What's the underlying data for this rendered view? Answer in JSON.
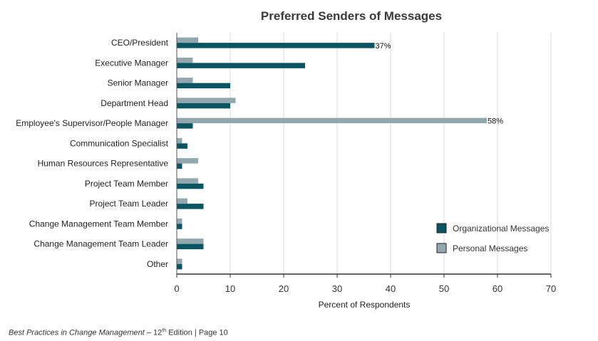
{
  "chart_data": {
    "type": "bar",
    "orientation": "horizontal",
    "title": "Preferred Senders of Messages",
    "xlabel": "Percent of Respondents",
    "ylabel": "",
    "xlim": [
      0,
      70
    ],
    "xticks": [
      0,
      10,
      20,
      30,
      40,
      50,
      60,
      70
    ],
    "grid": true,
    "legend_position": "right",
    "categories": [
      "CEO/President",
      "Executive Manager",
      "Senior Manager",
      "Department Head",
      "Employee's Supervisor/People Manager",
      "Communication Specialist",
      "Human Resources Representative",
      "Project Team Member",
      "Project Team Leader",
      "Change Management Team Member",
      "Change Management Team Leader",
      "Other"
    ],
    "series": [
      {
        "name": "Organizational Messages",
        "color": "#0b5563",
        "values": [
          37,
          24,
          10,
          10,
          3,
          2,
          1,
          5,
          5,
          1,
          5,
          1
        ]
      },
      {
        "name": "Personal Messages",
        "color": "#93a8ae",
        "values": [
          4,
          3,
          3,
          11,
          58,
          1,
          4,
          4,
          2,
          1,
          5,
          1
        ]
      }
    ],
    "data_labels": [
      {
        "series": 0,
        "index": 0,
        "text": "37%"
      },
      {
        "series": 1,
        "index": 4,
        "text": "58%"
      }
    ]
  },
  "footer": {
    "publication": "Best Practices in Change Management",
    "separator": "–",
    "edition_number": "12",
    "edition_suffix": "th",
    "edition_word": "Edition",
    "divider": "|",
    "page": "Page 10"
  }
}
